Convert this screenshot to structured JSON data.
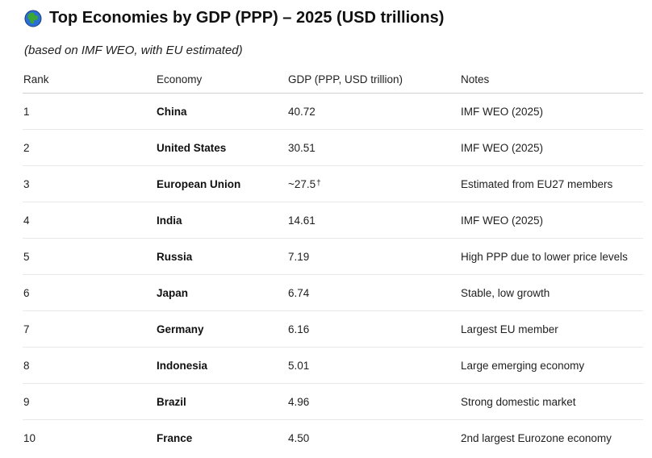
{
  "title": "Top Economies by GDP (PPP) – 2025 (USD trillions)",
  "subtitle": "(based on IMF WEO, with EU estimated)",
  "icons": {
    "title_icon": "globe-icon"
  },
  "colors": {
    "globe_land": "#3aa635",
    "globe_water": "#2b6fd6"
  },
  "table": {
    "headers": [
      "Rank",
      "Economy",
      "GDP (PPP, USD trillion)",
      "Notes"
    ],
    "rows": [
      {
        "rank": "1",
        "economy": "China",
        "gdp": "40.72",
        "note": "",
        "notes": "IMF WEO (2025)"
      },
      {
        "rank": "2",
        "economy": "United States",
        "gdp": "30.51",
        "note": "",
        "notes": "IMF WEO (2025)"
      },
      {
        "rank": "3",
        "economy": "European Union",
        "gdp": "~27.5",
        "note": "†",
        "notes": "Estimated from EU27 members"
      },
      {
        "rank": "4",
        "economy": "India",
        "gdp": "14.61",
        "note": "",
        "notes": "IMF WEO (2025)"
      },
      {
        "rank": "5",
        "economy": "Russia",
        "gdp": "7.19",
        "note": "",
        "notes": "High PPP due to lower price levels"
      },
      {
        "rank": "6",
        "economy": "Japan",
        "gdp": "6.74",
        "note": "",
        "notes": "Stable, low growth"
      },
      {
        "rank": "7",
        "economy": "Germany",
        "gdp": "6.16",
        "note": "",
        "notes": "Largest EU member"
      },
      {
        "rank": "8",
        "economy": "Indonesia",
        "gdp": "5.01",
        "note": "",
        "notes": "Large emerging economy"
      },
      {
        "rank": "9",
        "economy": "Brazil",
        "gdp": "4.96",
        "note": "",
        "notes": "Strong domestic market"
      },
      {
        "rank": "10",
        "economy": "France",
        "gdp": "4.50",
        "note": "",
        "notes": "2nd largest Eurozone economy"
      }
    ]
  }
}
